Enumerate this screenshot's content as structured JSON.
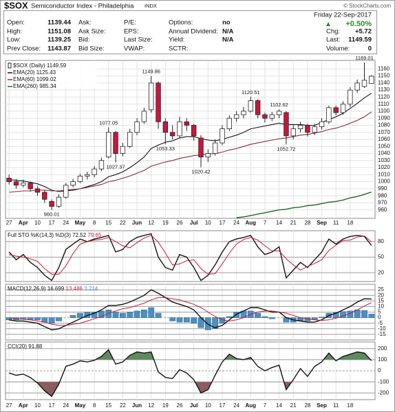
{
  "header": {
    "symbol": "$SOX",
    "name": "Semiconductor Index - Philadelphia",
    "exchange": "INDX",
    "credit": "© StockCharts.com",
    "date": "Friday 22-Sep-2017",
    "change_pct": "+0.50%",
    "columns": [
      [
        {
          "label": "Open:",
          "value": "1139.44"
        },
        {
          "label": "High:",
          "value": "1151.08"
        },
        {
          "label": "Low:",
          "value": "1139.25"
        },
        {
          "label": "Prev Close:",
          "value": "1143.87"
        }
      ],
      [
        {
          "label": "Ask:"
        },
        {
          "label": "Ask Size:"
        },
        {
          "label": "Bid:"
        },
        {
          "label": "Bid Size:"
        }
      ],
      [
        {
          "label": "P/E:"
        },
        {
          "label": "EPS:"
        },
        {
          "label": "Last Size:"
        },
        {
          "label": "VWAP:"
        }
      ],
      [
        {
          "label": "Options:",
          "value": "no"
        },
        {
          "label": "Annual Dividend:",
          "value": "N/A"
        },
        {
          "label": "Yield:",
          "value": "N/A"
        },
        {
          "label": "SCTR:"
        }
      ]
    ],
    "right": [
      {
        "label": "Chg:",
        "value": "+5.72"
      },
      {
        "label": "Last:",
        "value": "1149.59"
      },
      {
        "label": "Volume:",
        "value": "0"
      }
    ]
  },
  "chart_data": [
    {
      "type": "candlestick",
      "title": "$SOX (Daily)",
      "up_color": "#ffffff",
      "down_color": "#c8163c",
      "grid": true,
      "categories": [
        "27",
        null,
        "Apr",
        null,
        "10",
        null,
        "17",
        null,
        "24",
        null,
        "May",
        null,
        "8",
        null,
        "15",
        null,
        "22",
        null,
        "Jun",
        null,
        "12",
        null,
        "19",
        null,
        "26",
        null,
        "Jul",
        null,
        "10",
        null,
        "17",
        null,
        "24",
        null,
        "Aug",
        null,
        "7",
        null,
        "14",
        null,
        "21",
        null,
        "28",
        null,
        "Sep",
        null,
        "11",
        null,
        "18",
        null,
        null,
        null
      ],
      "open": [
        1005,
        1000,
        995,
        998,
        990,
        985,
        972,
        965,
        978,
        995,
        1000,
        1008,
        1010,
        1018,
        1035,
        1070,
        1040,
        1050,
        1070,
        1085,
        1102,
        1140,
        1085,
        1070,
        1065,
        1085,
        1080,
        1062,
        1035,
        1040,
        1055,
        1075,
        1090,
        1095,
        1100,
        1115,
        1095,
        1090,
        1095,
        1098,
        1065,
        1075,
        1080,
        1070,
        1078,
        1085,
        1105,
        1098,
        1110,
        1130,
        1135,
        1139.44
      ],
      "high": [
        1010,
        1004,
        1003,
        1000,
        994,
        988,
        975,
        982,
        998,
        1004,
        1011,
        1014,
        1022,
        1034,
        1077.05,
        1072,
        1055,
        1075,
        1090,
        1105,
        1149.86,
        1142,
        1090,
        1080,
        1092,
        1090,
        1082,
        1066,
        1046,
        1060,
        1080,
        1094,
        1100,
        1106,
        1120.51,
        1117,
        1098,
        1099,
        1102.62,
        1100,
        1080,
        1085,
        1082,
        1082,
        1090,
        1108,
        1108,
        1114,
        1134,
        1145,
        1169.01,
        1151.08
      ],
      "low": [
        996,
        990,
        992,
        986,
        980,
        970,
        960.01,
        963,
        976,
        992,
        998,
        1003,
        1006,
        1015,
        1033,
        1027.37,
        1036,
        1048,
        1066,
        1082,
        1098,
        1075,
        1053.33,
        1060,
        1062,
        1072,
        1058,
        1020.42,
        1028,
        1037,
        1052,
        1072,
        1085,
        1090,
        1098,
        1090,
        1084,
        1086,
        1090,
        1052.72,
        1060,
        1070,
        1064,
        1066,
        1074,
        1082,
        1094,
        1095,
        1106,
        1126,
        1133,
        1139.25
      ],
      "close": [
        1000,
        995,
        998,
        990,
        985,
        975,
        965,
        978,
        995,
        1000,
        1008,
        1010,
        1018,
        1030,
        1070,
        1040,
        1050,
        1070,
        1085,
        1100,
        1140,
        1085,
        1070,
        1065,
        1085,
        1080,
        1065,
        1035,
        1040,
        1055,
        1075,
        1090,
        1095,
        1100,
        1115,
        1095,
        1090,
        1095,
        1100,
        1065,
        1075,
        1080,
        1070,
        1078,
        1085,
        1105,
        1098,
        1110,
        1130,
        1140,
        1143.87,
        1149.59
      ],
      "annotations": [
        960.01,
        1027.37,
        1077.05,
        1149.86,
        1053.33,
        1020.42,
        1120.51,
        1102.62,
        1052.72,
        1169.01
      ],
      "series": [
        {
          "name": "EMA(20)",
          "color": "#111111",
          "values": [
            1003,
            1002,
            1001,
            999,
            997,
            993,
            988,
            986,
            987,
            988,
            990,
            993,
            996,
            1000,
            1007,
            1010,
            1014,
            1020,
            1027,
            1035,
            1047,
            1052,
            1056,
            1058,
            1062,
            1064,
            1064,
            1061,
            1059,
            1058,
            1060,
            1063,
            1066,
            1070,
            1075,
            1077,
            1079,
            1081,
            1083,
            1081,
            1081,
            1081,
            1080,
            1080,
            1084,
            1088,
            1092,
            1097,
            1104,
            1111,
            1119,
            1125.43
          ]
        },
        {
          "name": "EMA(60)",
          "color": "#8b2a3a",
          "values": [
            985,
            986,
            987,
            987,
            988,
            988,
            987,
            987,
            988,
            989,
            990,
            992,
            994,
            996,
            1000,
            1002,
            1005,
            1008,
            1012,
            1016,
            1022,
            1025,
            1028,
            1030,
            1033,
            1035,
            1037,
            1038,
            1039,
            1040,
            1042,
            1045,
            1047,
            1050,
            1053,
            1055,
            1057,
            1059,
            1061,
            1062,
            1064,
            1066,
            1067,
            1069,
            1071,
            1074,
            1076,
            1079,
            1083,
            1087,
            1092,
            1099.02
          ]
        },
        {
          "name": "EMA(260)",
          "color": "#1f6b1f",
          "values": [
            null,
            null,
            null,
            null,
            null,
            null,
            null,
            null,
            null,
            null,
            null,
            null,
            null,
            null,
            null,
            null,
            null,
            null,
            null,
            null,
            null,
            null,
            null,
            null,
            null,
            null,
            null,
            null,
            null,
            null,
            null,
            null,
            949,
            950,
            952,
            954,
            956,
            958,
            960,
            961,
            963,
            964,
            966,
            967,
            969,
            971,
            972,
            974,
            977,
            979,
            982,
            985.34
          ]
        }
      ],
      "ylim": [
        948,
        1172
      ],
      "yticks": [
        960,
        970,
        980,
        990,
        1000,
        1010,
        1020,
        1030,
        1040,
        1050,
        1060,
        1070,
        1080,
        1090,
        1100,
        1110,
        1120,
        1130,
        1140,
        1150,
        1160
      ]
    },
    {
      "type": "line",
      "title": "Full STO %K(14,3) %D(3)",
      "grid": true,
      "series": [
        {
          "color": "#111111",
          "values": [
            60,
            45,
            55,
            40,
            30,
            15,
            5,
            30,
            65,
            75,
            85,
            80,
            85,
            88,
            92,
            60,
            65,
            80,
            88,
            92,
            95,
            50,
            30,
            25,
            55,
            50,
            30,
            5,
            15,
            35,
            60,
            80,
            85,
            88,
            92,
            70,
            55,
            60,
            70,
            10,
            25,
            40,
            30,
            45,
            60,
            85,
            75,
            85,
            90,
            92,
            90,
            72.52
          ]
        },
        {
          "color": "#c8163c",
          "values": [
            55,
            52,
            50,
            47,
            42,
            28,
            17,
            17,
            33,
            57,
            75,
            80,
            83,
            84,
            88,
            80,
            72,
            68,
            78,
            87,
            92,
            79,
            58,
            35,
            37,
            43,
            45,
            28,
            17,
            18,
            37,
            58,
            75,
            84,
            88,
            83,
            72,
            62,
            62,
            47,
            35,
            25,
            32,
            38,
            45,
            63,
            73,
            82,
            83,
            89,
            91,
            79.65
          ]
        }
      ],
      "ylim": [
        3,
        101
      ],
      "yticks": [
        20,
        50,
        80
      ]
    },
    {
      "type": "macd",
      "title": "MACD(12,26,9)",
      "grid": true,
      "series": [
        {
          "color": "#111111",
          "values": [
            -2,
            -3,
            -3,
            -4,
            -5,
            -8,
            -11,
            -10,
            -7,
            -4,
            -1,
            2,
            4,
            7,
            11,
            11,
            12,
            14,
            17,
            20,
            25,
            22,
            18,
            14,
            12,
            10,
            7,
            0,
            -6,
            -9,
            -7,
            -2,
            3,
            6,
            9,
            9,
            7,
            5,
            5,
            0,
            -2,
            -3,
            -4,
            -4,
            -2,
            2,
            4,
            7,
            10,
            14,
            17,
            16.699
          ]
        },
        {
          "color": "#c8163c",
          "values": [
            0,
            -1,
            -1.5,
            -2,
            -3,
            -4,
            -6,
            -7,
            -7,
            -6,
            -5,
            -3,
            -1,
            1,
            4,
            6,
            8,
            9,
            11,
            13,
            16,
            18,
            18,
            17,
            16,
            14,
            12,
            9,
            5,
            1,
            -2,
            -3,
            -2,
            0,
            3,
            5,
            6,
            6,
            5,
            4,
            2,
            0,
            -1,
            -2,
            -2.5,
            -2,
            -0.5,
            1.5,
            4,
            7,
            10.5,
            13.486
          ]
        }
      ],
      "histogram": {
        "color": "#4a90c2",
        "values": [
          -2,
          -2,
          -1.5,
          -2,
          -2,
          -4,
          -5,
          -3,
          0,
          2,
          4,
          5,
          5,
          6,
          7,
          5,
          4,
          5,
          6,
          7,
          9,
          4,
          0,
          -3,
          -4,
          -4,
          -5,
          -9,
          -11,
          -10,
          -5,
          1,
          5,
          6,
          6,
          4,
          1,
          -1,
          0,
          -4,
          -4,
          -3,
          -3,
          -2,
          0.5,
          4,
          4.5,
          5.5,
          6,
          7,
          6.5,
          3.214
        ]
      },
      "ylim": [
        -20,
        30
      ],
      "yticks": [
        -15,
        -10,
        -5,
        0,
        5,
        10,
        15,
        20,
        25
      ]
    },
    {
      "type": "cci",
      "title": "CCI(20)",
      "grid": true,
      "overbought": 100,
      "oversold": -100,
      "above_color": "#5e8a5e",
      "below_color": "#8e5c5c",
      "series": [
        {
          "color": "#111111",
          "values": [
            -20,
            -40,
            -30,
            -60,
            -110,
            -180,
            -230,
            -120,
            40,
            60,
            90,
            80,
            95,
            130,
            190,
            60,
            80,
            140,
            170,
            160,
            170,
            -10,
            -60,
            -70,
            10,
            -20,
            -80,
            -200,
            -170,
            -40,
            80,
            150,
            110,
            100,
            120,
            40,
            0,
            30,
            50,
            -170,
            -80,
            20,
            -50,
            40,
            80,
            160,
            90,
            130,
            150,
            170,
            160,
            91.88
          ]
        }
      ],
      "ylim": [
        -260,
        260
      ],
      "yticks": [
        -200,
        -100,
        0,
        100,
        200
      ]
    }
  ]
}
